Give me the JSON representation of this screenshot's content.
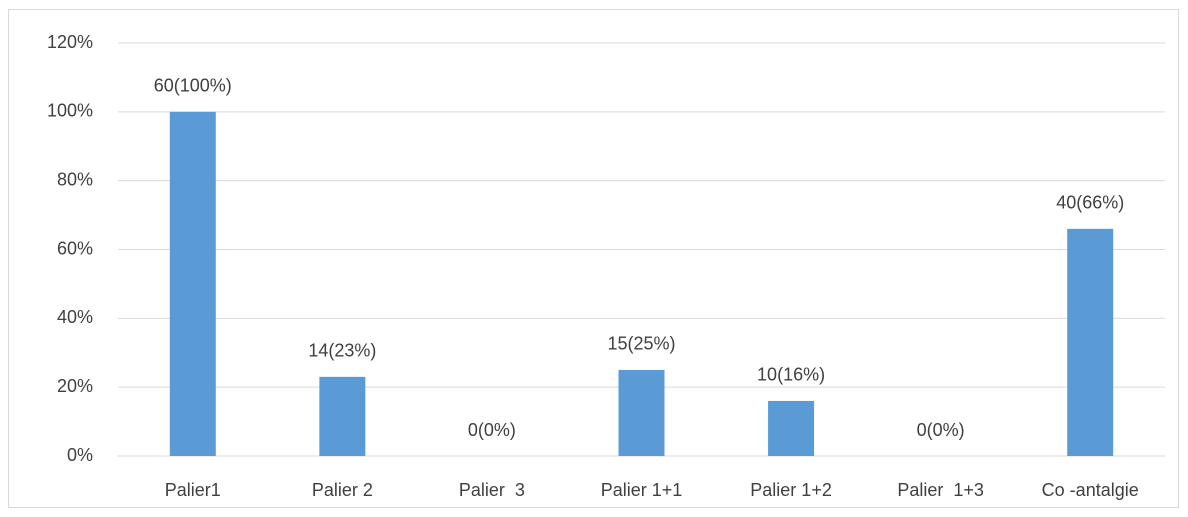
{
  "chart_data": {
    "type": "bar",
    "categories": [
      "Palier1",
      "Palier 2",
      "Palier  3",
      "Palier 1+1",
      "Palier 1+2",
      "Palier  1+3",
      "Co -antalgie"
    ],
    "values": [
      100,
      23,
      0,
      25,
      16,
      0,
      66
    ],
    "value_labels": [
      "60(100%)",
      "14(23%)",
      "0(0%)",
      "15(25%)",
      "10(16%)",
      "0(0%)",
      "40(66%)"
    ],
    "color": "#5b9bd5",
    "ylim": [
      0,
      120
    ],
    "yticks": [
      {
        "value": 0,
        "label": "0%"
      },
      {
        "value": 20,
        "label": "20%"
      },
      {
        "value": 40,
        "label": "40%"
      },
      {
        "value": 60,
        "label": "60%"
      },
      {
        "value": 80,
        "label": "80%"
      },
      {
        "value": 100,
        "label": "100%"
      },
      {
        "value": 120,
        "label": "120%"
      }
    ],
    "grid": true
  }
}
